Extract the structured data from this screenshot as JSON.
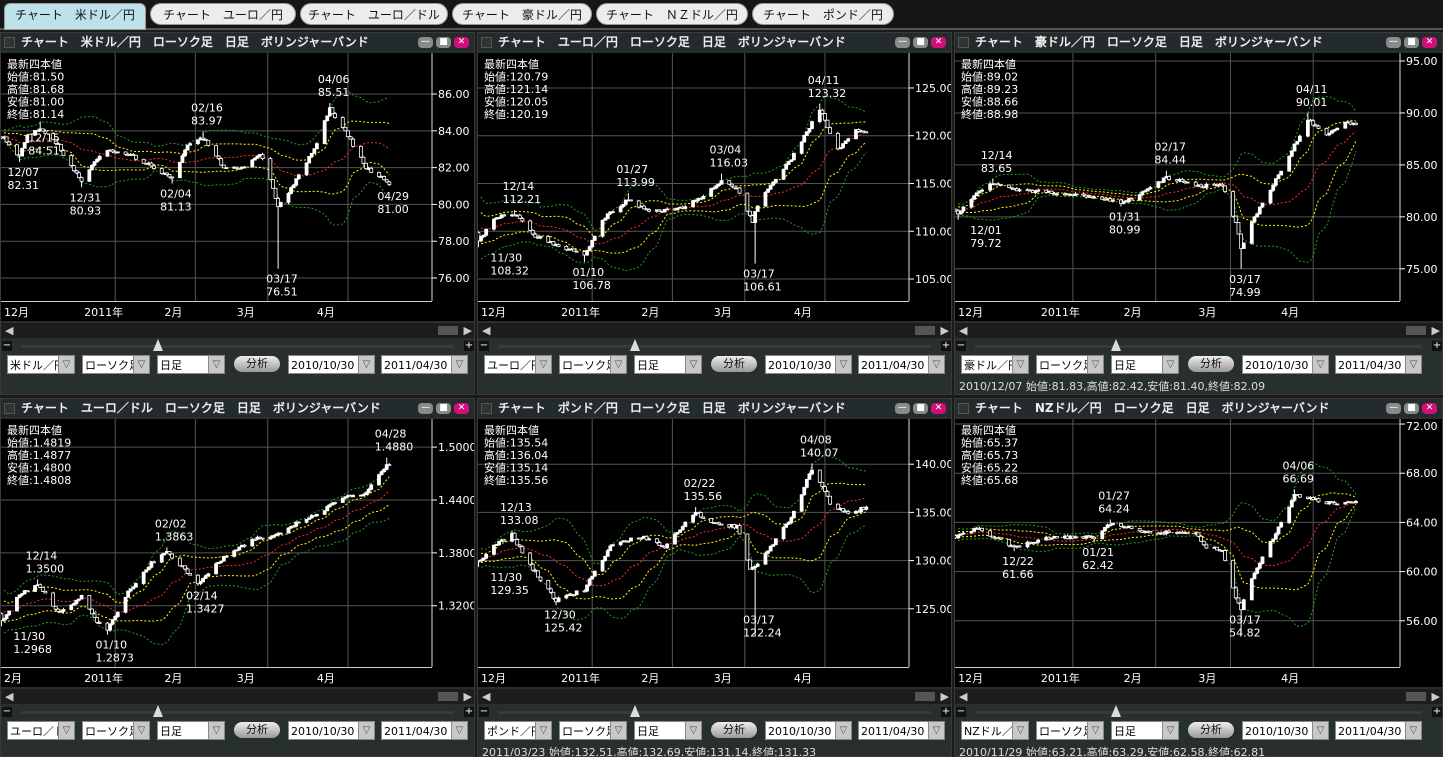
{
  "tabs": [
    {
      "label": "チャート　米ドル／円",
      "active": true
    },
    {
      "label": "チャート　ユーロ／円",
      "active": false
    },
    {
      "label": "チャート　ユーロ／ドル",
      "active": false
    },
    {
      "label": "チャート　豪ドル／円",
      "active": false
    },
    {
      "label": "チャート　ＮＺドル／円",
      "active": false
    },
    {
      "label": "チャート　ポンド／円",
      "active": false
    }
  ],
  "panels": [
    {
      "title": "チャート　米ドル／円　ローソク足　日足　ボリンジャーバンド",
      "pair": "米ドル／円",
      "chart_type": "ローソク足",
      "period": "日足",
      "analyze": "分析",
      "from": "2010/10/30",
      "to": "2011/04/30",
      "status": ""
    },
    {
      "title": "チャート　ユーロ／円　ローソク足　日足　ボリンジャーバンド",
      "pair": "ユーロ／円",
      "chart_type": "ローソク足",
      "period": "日足",
      "analyze": "分析",
      "from": "2010/10/30",
      "to": "2011/04/30",
      "status": ""
    },
    {
      "title": "チャート　豪ドル／円　ローソク足　日足　ボリンジャーバンド",
      "pair": "豪ドル／円",
      "chart_type": "ローソク足",
      "period": "日足",
      "analyze": "分析",
      "from": "2010/10/30",
      "to": "2011/04/30",
      "status": "2010/12/07 始値:81.83,高値:82.42,安値:81.40,終値:82.09"
    },
    {
      "title": "チャート　ユーロ／ドル　ローソク足　日足　ボリンジャーバンド",
      "pair": "ユーロ／ドル",
      "chart_type": "ローソク足",
      "period": "日足",
      "analyze": "分析",
      "from": "2010/10/30",
      "to": "2011/04/30",
      "status": ""
    },
    {
      "title": "チャート　ポンド／円　ローソク足　日足　ボリンジャーバンド",
      "pair": "ポンド／円",
      "chart_type": "ローソク足",
      "period": "日足",
      "analyze": "分析",
      "from": "2010/10/30",
      "to": "2011/04/30",
      "status": "2011/03/23 始値:132.51,高値:132.69,安値:131.14,終値:131.33"
    },
    {
      "title": "チャート　NZドル／円　ローソク足　日足　ボリンジャーバンド",
      "pair": "NZドル／円",
      "chart_type": "ローソク足",
      "period": "日足",
      "analyze": "分析",
      "from": "2010/10/30",
      "to": "2011/04/30",
      "status": "2010/11/29 始値:63.21,高値:63.29,安値:62.58,終値:62.81"
    }
  ],
  "colors": {
    "band_2sigma": "#1fa01f",
    "band_1sigma": "#ffff00",
    "moving_average": "#ff2a2a",
    "candle": "#ffffff",
    "close_button": "#d0107a",
    "active_tab": "#bfe1ea"
  },
  "chart_data": [
    {
      "type": "candlestick",
      "indicator": "bollinger",
      "ylim": [
        74.75,
        88.23
      ],
      "yticks": [
        "86.00",
        "84.00",
        "82.00",
        "80.00",
        "78.00",
        "76.00"
      ],
      "xlabels": [
        "12月",
        "2011年",
        "2月",
        "3月",
        "4月"
      ],
      "latest": {
        "heading": "最新四本値",
        "open": "始値:81.50",
        "high": "高値:81.68",
        "low": "安値:81.00",
        "close": "終値:81.14"
      },
      "annotations": [
        {
          "date": "2010-12-15",
          "label": "12/15",
          "value": "84.51",
          "kind": "high"
        },
        {
          "date": "2010-12-07",
          "label": "12/07",
          "value": "82.31",
          "kind": "low"
        },
        {
          "date": "2010-12-31",
          "label": "12/31",
          "value": "80.93",
          "kind": "low"
        },
        {
          "date": "2011-02-16",
          "label": "02/16",
          "value": "83.97",
          "kind": "high"
        },
        {
          "date": "2011-02-04",
          "label": "02/04",
          "value": "81.13",
          "kind": "low"
        },
        {
          "date": "2011-04-06",
          "label": "04/06",
          "value": "85.51",
          "kind": "high"
        },
        {
          "date": "2011-03-17",
          "label": "03/17",
          "value": "76.51",
          "kind": "low"
        },
        {
          "date": "2011-04-29",
          "label": "04/29",
          "value": "81.00",
          "kind": "low"
        }
      ],
      "close_path": [
        [
          "2010-11-26",
          84.0
        ],
        [
          "2010-12-01",
          83.6
        ],
        [
          "2010-12-07",
          82.6
        ],
        [
          "2010-12-10",
          83.8
        ],
        [
          "2010-12-15",
          84.1
        ],
        [
          "2010-12-20",
          83.6
        ],
        [
          "2010-12-31",
          81.2
        ],
        [
          "2011-01-05",
          82.4
        ],
        [
          "2011-01-10",
          83.0
        ],
        [
          "2011-01-20",
          82.6
        ],
        [
          "2011-01-28",
          82.0
        ],
        [
          "2011-02-04",
          81.4
        ],
        [
          "2011-02-10",
          83.2
        ],
        [
          "2011-02-16",
          83.6
        ],
        [
          "2011-02-24",
          82.0
        ],
        [
          "2011-03-02",
          81.9
        ],
        [
          "2011-03-10",
          82.8
        ],
        [
          "2011-03-15",
          80.9
        ],
        [
          "2011-03-17",
          79.8
        ],
        [
          "2011-03-22",
          80.9
        ],
        [
          "2011-03-31",
          83.0
        ],
        [
          "2011-04-06",
          85.2
        ],
        [
          "2011-04-12",
          84.0
        ],
        [
          "2011-04-20",
          82.0
        ],
        [
          "2011-04-29",
          81.14
        ]
      ]
    },
    {
      "type": "candlestick",
      "indicator": "bollinger",
      "ylim": [
        102.7,
        128.66
      ],
      "yticks": [
        "125.00",
        "120.00",
        "115.00",
        "110.00",
        "105.00"
      ],
      "xlabels": [
        "12月",
        "2011年",
        "2月",
        "3月",
        "4月"
      ],
      "latest": {
        "heading": "最新四本値",
        "open": "始値:120.79",
        "high": "高値:121.14",
        "low": "安値:120.05",
        "close": "終値:120.19"
      },
      "annotations": [
        {
          "date": "2010-11-30",
          "label": "11/30",
          "value": "108.32",
          "kind": "low"
        },
        {
          "date": "2010-12-14",
          "label": "12/14",
          "value": "112.21",
          "kind": "high"
        },
        {
          "date": "2011-01-10",
          "label": "01/10",
          "value": "106.78",
          "kind": "low"
        },
        {
          "date": "2011-01-27",
          "label": "01/27",
          "value": "113.99",
          "kind": "high"
        },
        {
          "date": "2011-03-04",
          "label": "03/04",
          "value": "116.03",
          "kind": "high"
        },
        {
          "date": "2011-03-17",
          "label": "03/17",
          "value": "106.61",
          "kind": "low"
        },
        {
          "date": "2011-04-11",
          "label": "04/11",
          "value": "123.32",
          "kind": "high"
        }
      ],
      "close_path": [
        [
          "2010-11-26",
          113.0
        ],
        [
          "2010-11-30",
          109.0
        ],
        [
          "2010-12-07",
          111.5
        ],
        [
          "2010-12-14",
          111.8
        ],
        [
          "2010-12-22",
          109.5
        ],
        [
          "2010-12-31",
          108.5
        ],
        [
          "2011-01-10",
          107.5
        ],
        [
          "2011-01-18",
          111.5
        ],
        [
          "2011-01-27",
          113.3
        ],
        [
          "2011-02-04",
          112.0
        ],
        [
          "2011-02-15",
          112.3
        ],
        [
          "2011-02-24",
          113.5
        ],
        [
          "2011-03-04",
          115.2
        ],
        [
          "2011-03-10",
          114.5
        ],
        [
          "2011-03-16",
          111.0
        ],
        [
          "2011-03-17",
          112.0
        ],
        [
          "2011-03-22",
          114.5
        ],
        [
          "2011-03-31",
          117.5
        ],
        [
          "2011-04-11",
          122.8
        ],
        [
          "2011-04-18",
          118.5
        ],
        [
          "2011-04-25",
          120.5
        ],
        [
          "2011-04-29",
          120.19
        ]
      ]
    },
    {
      "type": "candlestick",
      "indicator": "bollinger",
      "ylim": [
        71.9,
        95.77
      ],
      "yticks": [
        "95.00",
        "90.00",
        "85.00",
        "80.00",
        "75.00"
      ],
      "xlabels": [
        "12月",
        "2011年",
        "2月",
        "3月",
        "4月"
      ],
      "latest": {
        "heading": "最新四本値",
        "open": "始値:89.02",
        "high": "高値:89.23",
        "low": "安値:88.66",
        "close": "終値:88.98"
      },
      "annotations": [
        {
          "date": "2010-12-01",
          "label": "12/01",
          "value": "79.72",
          "kind": "low"
        },
        {
          "date": "2010-12-14",
          "label": "12/14",
          "value": "83.65",
          "kind": "high"
        },
        {
          "date": "2011-01-31",
          "label": "01/31",
          "value": "80.99",
          "kind": "low"
        },
        {
          "date": "2011-02-17",
          "label": "02/17",
          "value": "84.44",
          "kind": "high"
        },
        {
          "date": "2011-03-17",
          "label": "03/17",
          "value": "74.99",
          "kind": "low"
        },
        {
          "date": "2011-04-11",
          "label": "04/11",
          "value": "90.01",
          "kind": "high"
        }
      ],
      "close_path": [
        [
          "2010-11-26",
          81.0
        ],
        [
          "2010-12-01",
          80.3
        ],
        [
          "2010-12-07",
          82.0
        ],
        [
          "2010-12-14",
          83.2
        ],
        [
          "2010-12-24",
          82.6
        ],
        [
          "2011-01-10",
          82.2
        ],
        [
          "2011-01-20",
          82.0
        ],
        [
          "2011-01-31",
          81.3
        ],
        [
          "2011-02-08",
          82.3
        ],
        [
          "2011-02-17",
          83.8
        ],
        [
          "2011-02-28",
          83.0
        ],
        [
          "2011-03-10",
          83.0
        ],
        [
          "2011-03-15",
          79.5
        ],
        [
          "2011-03-17",
          77.0
        ],
        [
          "2011-03-22",
          80.0
        ],
        [
          "2011-03-31",
          84.0
        ],
        [
          "2011-04-11",
          89.3
        ],
        [
          "2011-04-18",
          87.8
        ],
        [
          "2011-04-25",
          89.0
        ],
        [
          "2011-04-29",
          88.98
        ]
      ]
    },
    {
      "type": "candlestick",
      "indicator": "bollinger",
      "ylim": [
        1.2505,
        1.5319
      ],
      "yticks": [
        "1.5000",
        "1.4400",
        "1.3800",
        "1.3200"
      ],
      "xlabels": [
        "2月",
        "2011年",
        "2月",
        "3月",
        "4月"
      ],
      "latest": {
        "heading": "最新四本値",
        "open": "始値:1.4819",
        "high": "高値:1.4877",
        "low": "安値:1.4800",
        "close": "終値:1.4808"
      },
      "annotations": [
        {
          "date": "2010-11-30",
          "label": "11/30",
          "value": "1.2968",
          "kind": "low"
        },
        {
          "date": "2010-12-14",
          "label": "12/14",
          "value": "1.3500",
          "kind": "high"
        },
        {
          "date": "2011-01-10",
          "label": "01/10",
          "value": "1.2873",
          "kind": "low"
        },
        {
          "date": "2011-02-02",
          "label": "02/02",
          "value": "1.3863",
          "kind": "high"
        },
        {
          "date": "2011-02-14",
          "label": "02/14",
          "value": "1.3427",
          "kind": "low"
        },
        {
          "date": "2011-04-28",
          "label": "04/28",
          "value": "1.4880",
          "kind": "high"
        }
      ],
      "close_path": [
        [
          "2010-11-26",
          1.333
        ],
        [
          "2010-11-30",
          1.302
        ],
        [
          "2010-12-07",
          1.333
        ],
        [
          "2010-12-14",
          1.345
        ],
        [
          "2010-12-22",
          1.312
        ],
        [
          "2010-12-31",
          1.33
        ],
        [
          "2011-01-05",
          1.305
        ],
        [
          "2011-01-10",
          1.292
        ],
        [
          "2011-01-18",
          1.335
        ],
        [
          "2011-01-27",
          1.368
        ],
        [
          "2011-02-02",
          1.382
        ],
        [
          "2011-02-14",
          1.346
        ],
        [
          "2011-02-22",
          1.37
        ],
        [
          "2011-03-07",
          1.395
        ],
        [
          "2011-03-17",
          1.4
        ],
        [
          "2011-03-24",
          1.414
        ],
        [
          "2011-04-05",
          1.431
        ],
        [
          "2011-04-14",
          1.445
        ],
        [
          "2011-04-20",
          1.447
        ],
        [
          "2011-04-28",
          1.48
        ],
        [
          "2011-04-29",
          1.4808
        ]
      ]
    },
    {
      "type": "candlestick",
      "indicator": "bollinger",
      "ylim": [
        118.96,
        144.69
      ],
      "yticks": [
        "140.00",
        "135.00",
        "130.00",
        "125.00"
      ],
      "xlabels": [
        "12月",
        "2011年",
        "2月",
        "3月",
        "4月"
      ],
      "latest": {
        "heading": "最新四本値",
        "open": "始値:135.54",
        "high": "高値:136.04",
        "low": "安値:135.14",
        "close": "終値:135.56"
      },
      "annotations": [
        {
          "date": "2010-11-30",
          "label": "11/30",
          "value": "129.35",
          "kind": "low"
        },
        {
          "date": "2010-12-13",
          "label": "12/13",
          "value": "133.08",
          "kind": "high"
        },
        {
          "date": "2010-12-30",
          "label": "12/30",
          "value": "125.42",
          "kind": "low"
        },
        {
          "date": "2011-02-22",
          "label": "02/22",
          "value": "135.56",
          "kind": "high"
        },
        {
          "date": "2011-03-17",
          "label": "03/17",
          "value": "122.24",
          "kind": "low"
        },
        {
          "date": "2011-04-08",
          "label": "04/08",
          "value": "140.07",
          "kind": "high"
        }
      ],
      "close_path": [
        [
          "2010-11-26",
          131.0
        ],
        [
          "2010-11-30",
          129.8
        ],
        [
          "2010-12-06",
          131.5
        ],
        [
          "2010-12-13",
          132.7
        ],
        [
          "2010-12-20",
          129.5
        ],
        [
          "2010-12-30",
          125.9
        ],
        [
          "2011-01-10",
          127.0
        ],
        [
          "2011-01-20",
          131.5
        ],
        [
          "2011-02-01",
          132.5
        ],
        [
          "2011-02-10",
          131.5
        ],
        [
          "2011-02-22",
          135.0
        ],
        [
          "2011-03-02",
          133.8
        ],
        [
          "2011-03-10",
          133.5
        ],
        [
          "2011-03-15",
          129.0
        ],
        [
          "2011-03-17",
          129.5
        ],
        [
          "2011-03-22",
          131.0
        ],
        [
          "2011-03-31",
          134.5
        ],
        [
          "2011-04-08",
          139.5
        ],
        [
          "2011-04-15",
          136.0
        ],
        [
          "2011-04-22",
          134.8
        ],
        [
          "2011-04-29",
          135.56
        ]
      ]
    },
    {
      "type": "candlestick",
      "indicator": "bollinger",
      "ylim": [
        52.24,
        72.41
      ],
      "yticks": [
        "72.00",
        "68.00",
        "64.00",
        "60.00",
        "56.00"
      ],
      "xlabels": [
        "12月",
        "2011年",
        "2月",
        "3月",
        "4月"
      ],
      "latest": {
        "heading": "最新四本値",
        "open": "始値:65.37",
        "high": "高値:65.73",
        "low": "安値:65.22",
        "close": "終値:65.68"
      },
      "annotations": [
        {
          "date": "2010-12-22",
          "label": "12/22",
          "value": "61.66",
          "kind": "low"
        },
        {
          "date": "2011-01-21",
          "label": "01/21",
          "value": "62.42",
          "kind": "low"
        },
        {
          "date": "2011-01-27",
          "label": "01/27",
          "value": "64.24",
          "kind": "high"
        },
        {
          "date": "2011-03-17",
          "label": "03/17",
          "value": "54.82",
          "kind": "low"
        },
        {
          "date": "2011-04-06",
          "label": "04/06",
          "value": "66.69",
          "kind": "high"
        }
      ],
      "close_path": [
        [
          "2010-11-26",
          63.3
        ],
        [
          "2010-11-29",
          62.8
        ],
        [
          "2010-12-08",
          63.5
        ],
        [
          "2010-12-22",
          62.0
        ],
        [
          "2011-01-05",
          62.8
        ],
        [
          "2011-01-21",
          62.8
        ],
        [
          "2011-01-27",
          63.9
        ],
        [
          "2011-02-10",
          63.2
        ],
        [
          "2011-02-28",
          63.2
        ],
        [
          "2011-03-04",
          62.0
        ],
        [
          "2011-03-10",
          61.8
        ],
        [
          "2011-03-15",
          58.0
        ],
        [
          "2011-03-17",
          57.0
        ],
        [
          "2011-03-22",
          60.0
        ],
        [
          "2011-03-31",
          63.5
        ],
        [
          "2011-04-06",
          66.3
        ],
        [
          "2011-04-15",
          65.8
        ],
        [
          "2011-04-22",
          65.4
        ],
        [
          "2011-04-29",
          65.68
        ]
      ]
    }
  ]
}
